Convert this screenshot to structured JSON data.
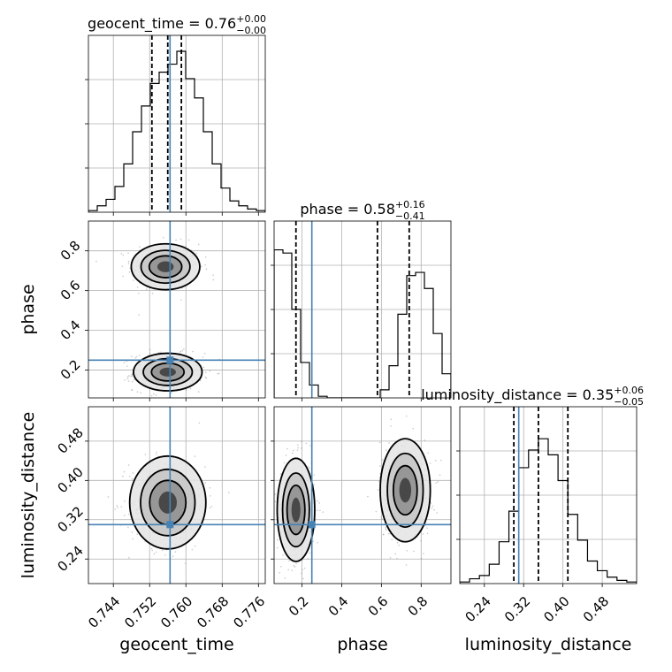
{
  "chart_data": {
    "type": "corner",
    "parameters": [
      "geocent_time",
      "phase",
      "luminosity_distance"
    ],
    "truths": {
      "geocent_time": 0.7565,
      "phase": 0.25,
      "luminosity_distance": 0.31
    },
    "truth_color": "#4682b4",
    "panel_titles": {
      "geocent_time": {
        "name": "geocent_time",
        "value": "0.76",
        "plus": "+0.00",
        "minus": "−0.00"
      },
      "phase": {
        "name": "phase",
        "value": "0.58",
        "plus": "+0.16",
        "minus": "−0.41"
      },
      "luminosity_distance": {
        "name": "luminosity_distance",
        "value": "0.35",
        "plus": "+0.06",
        "minus": "−0.05"
      }
    },
    "axis_labels": {
      "geocent_time": "geocent_time",
      "phase": "phase",
      "luminosity_distance": "luminosity_distance"
    },
    "ranges": {
      "geocent_time": [
        0.7385,
        0.7775
      ],
      "phase": [
        0.06,
        0.95
      ],
      "luminosity_distance": [
        0.19,
        0.55
      ]
    },
    "ticks": {
      "geocent_time": [
        "0.744",
        "0.752",
        "0.760",
        "0.768",
        "0.776"
      ],
      "phase": [
        "0.2",
        "0.4",
        "0.6",
        "0.8"
      ],
      "luminosity_distance": [
        "0.24",
        "0.32",
        "0.40",
        "0.48"
      ]
    },
    "quantiles": {
      "geocent_time": [
        0.7525,
        0.756,
        0.759
      ],
      "phase": [
        0.17,
        0.58,
        0.74
      ],
      "luminosity_distance": [
        0.3,
        0.35,
        0.41
      ]
    },
    "histograms": {
      "geocent_time": [
        0.01,
        0.04,
        0.08,
        0.16,
        0.3,
        0.5,
        0.66,
        0.8,
        0.87,
        0.92,
        1.0,
        0.83,
        0.71,
        0.5,
        0.3,
        0.15,
        0.07,
        0.04,
        0.02,
        0.01
      ],
      "phase": [
        0.92,
        0.9,
        0.55,
        0.22,
        0.08,
        0.01,
        0.0,
        0.0,
        0.0,
        0.0,
        0.0,
        0.0,
        0.05,
        0.2,
        0.52,
        0.76,
        0.78,
        0.68,
        0.4,
        0.15
      ],
      "luminosity_distance": [
        0.01,
        0.03,
        0.05,
        0.12,
        0.26,
        0.45,
        0.72,
        0.83,
        0.9,
        0.8,
        0.64,
        0.43,
        0.27,
        0.14,
        0.08,
        0.04,
        0.02,
        0.01
      ]
    },
    "modes": {
      "phase_vs_geocent_time": [
        {
          "x": 0.7555,
          "y": 0.72,
          "sx": 0.0036,
          "sy": 0.055
        },
        {
          "x": 0.756,
          "y": 0.19,
          "sx": 0.0036,
          "sy": 0.045
        }
      ],
      "luminosity_distance_vs_geocent_time": [
        {
          "x": 0.756,
          "y": 0.355,
          "sx": 0.004,
          "sy": 0.045
        }
      ],
      "luminosity_distance_vs_phase": [
        {
          "x": 0.17,
          "y": 0.34,
          "sx": 0.045,
          "sy": 0.05
        },
        {
          "x": 0.72,
          "y": 0.38,
          "sx": 0.06,
          "sy": 0.05
        }
      ]
    }
  }
}
